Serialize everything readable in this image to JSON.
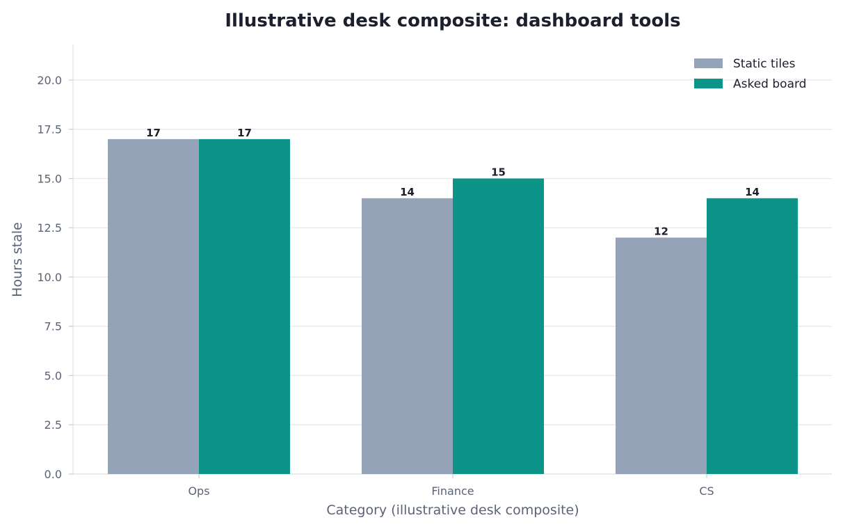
{
  "chart_data": {
    "type": "bar",
    "title": "Illustrative desk composite: dashboard tools",
    "xlabel": "Category (illustrative desk composite)",
    "ylabel": "Hours stale",
    "categories": [
      "Ops",
      "Finance",
      "CS"
    ],
    "series": [
      {
        "name": "Static tiles",
        "values": [
          17,
          14,
          12
        ],
        "color": "#95a3b9"
      },
      {
        "name": "Asked board",
        "values": [
          17,
          15,
          14
        ],
        "color": "#0d9488"
      }
    ],
    "ylim": [
      0,
      21.8
    ],
    "yticks": [
      "0.0",
      "2.5",
      "5.0",
      "7.5",
      "10.0",
      "12.5",
      "15.0",
      "17.5",
      "20.0"
    ],
    "grid": true,
    "legend": "top-right",
    "data_labels": true
  }
}
